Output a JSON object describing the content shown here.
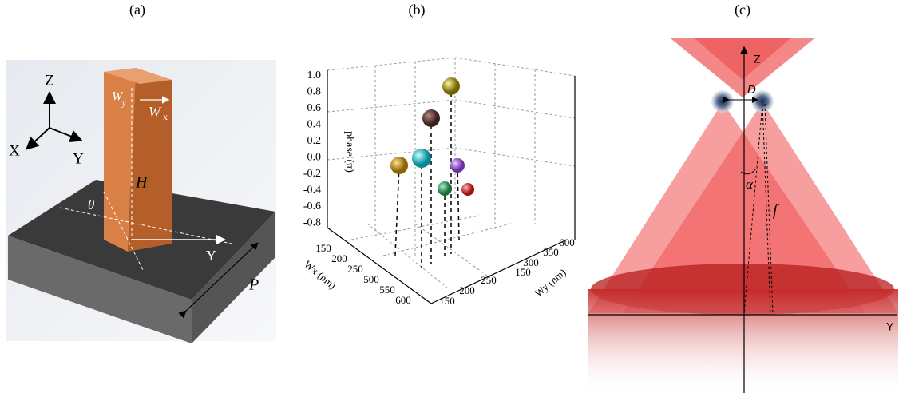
{
  "panels": [
    {
      "label": "(a)",
      "axes": [
        "Z",
        "X",
        "Y"
      ],
      "annotations": {
        "wy": "W",
        "wy_sub": "y",
        "wx": "W",
        "wx_sub": "x",
        "height": "H",
        "angle": "θ",
        "y_axis": "Y",
        "period": "P"
      }
    },
    {
      "label": "(b)",
      "z_title": "phase (π)",
      "z_ticks": [
        "1.0",
        "0.8",
        "0.6",
        "0.4",
        "0.2",
        "0.0",
        "-0.2",
        "-0.4",
        "-0.6",
        "-0.8"
      ],
      "wx_title": "Wx (nm)",
      "wx_ticks": [
        "150",
        "200",
        "250",
        "500",
        "550",
        "600"
      ],
      "wy_title": "Wy (nm)",
      "wy_ticks": [
        "150",
        "200",
        "250",
        "150",
        "300",
        "350",
        "600"
      ]
    },
    {
      "label": "(c)",
      "annotations": {
        "z": "Z",
        "d": "D",
        "alpha": "α",
        "f": "f",
        "y": "Y"
      }
    }
  ]
}
